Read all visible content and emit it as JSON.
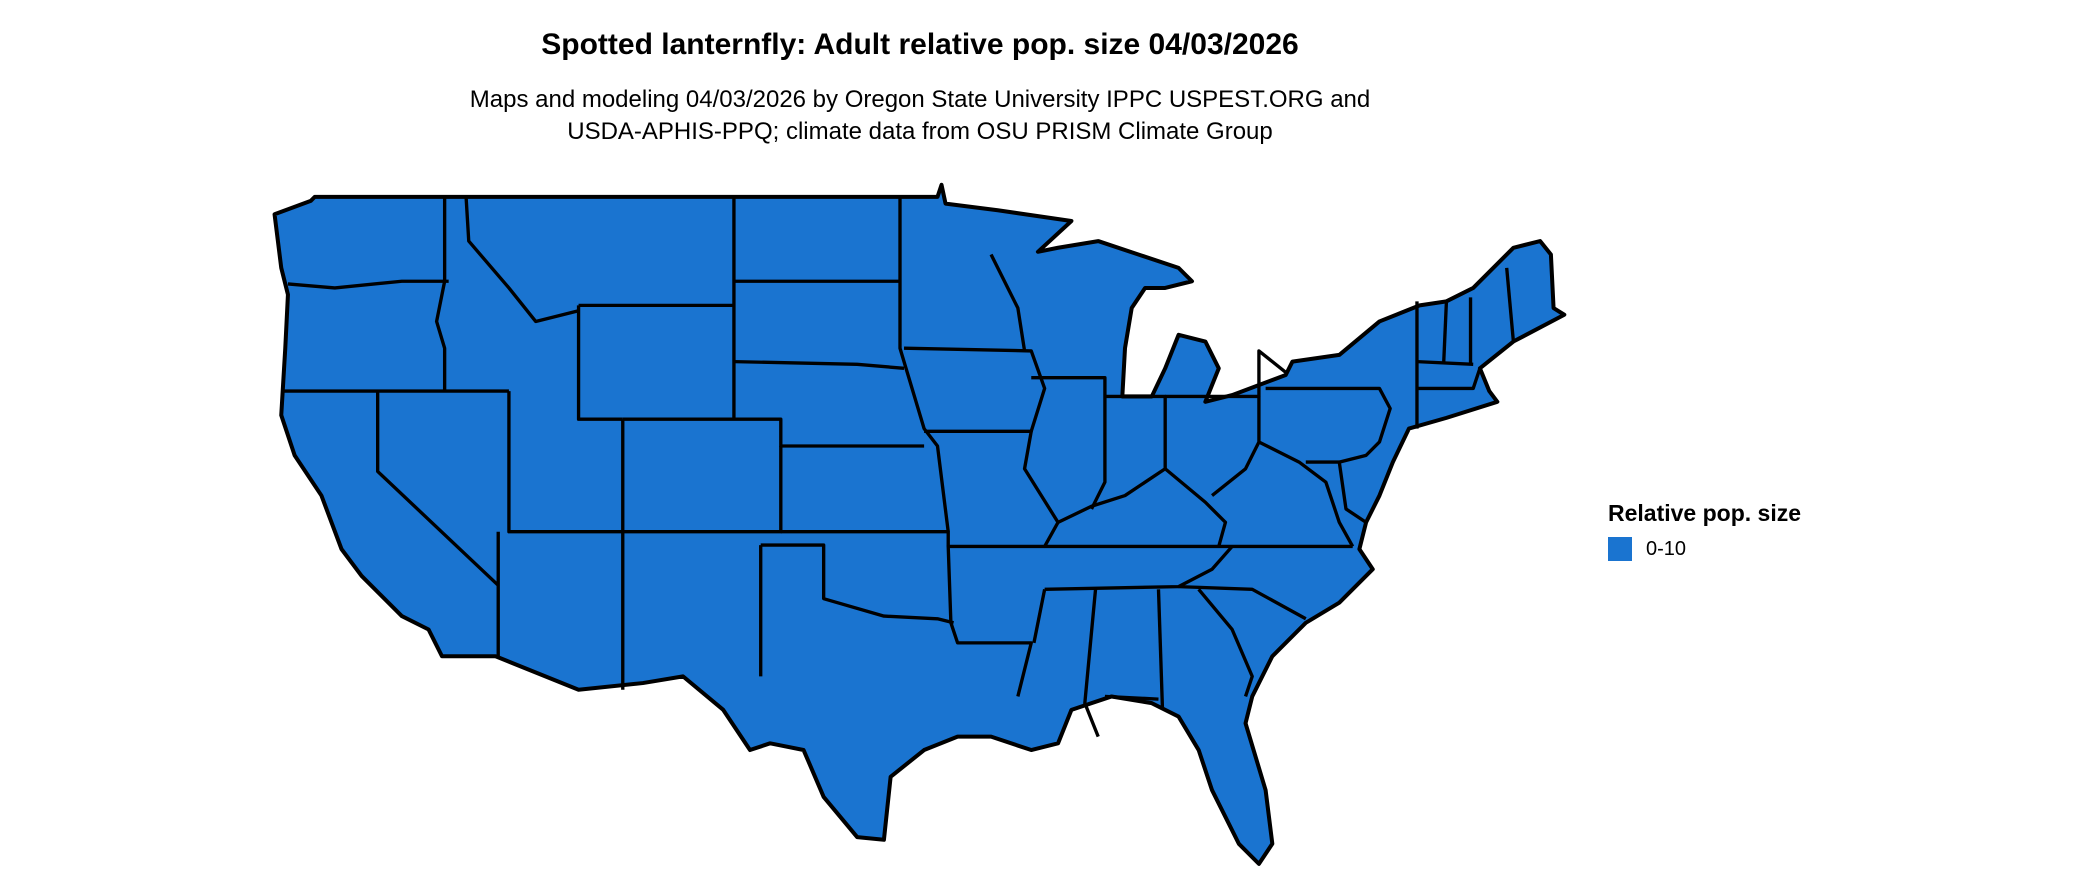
{
  "title": "Spotted lanternfly: Adult relative pop. size 04/03/2026",
  "subtitle_lines": [
    "Maps and modeling 04/03/2026 by Oregon State University IPPC USPEST.ORG and",
    "USDA-APHIS-PPQ; climate data from OSU PRISM Climate Group"
  ],
  "map": {
    "region": "Contiguous United States",
    "fill_color": "#1a74d0",
    "border_color": "#000000"
  },
  "legend": {
    "title": "Relative pop. size",
    "items": [
      {
        "label": "0-10",
        "color": "#1a74d0"
      }
    ]
  }
}
